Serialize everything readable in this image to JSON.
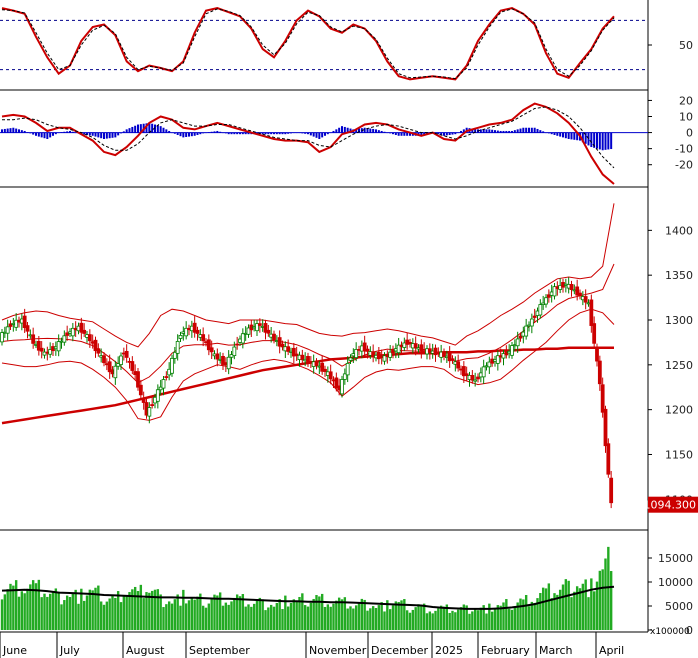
{
  "chart_data": [
    {
      "type": "line",
      "panel": "stochastic",
      "y_ticks": [
        "50"
      ],
      "ylim": [
        0,
        100
      ],
      "reference_lines": [
        80,
        20
      ],
      "colors": {
        "main": "#cc0000",
        "signal": "#000000",
        "reference": "#00008b"
      },
      "x": [
        0,
        4,
        8,
        12,
        16,
        20,
        24,
        28,
        32,
        36,
        40,
        44,
        48,
        52,
        56,
        60,
        64,
        68,
        72,
        76,
        80,
        84,
        88,
        92,
        96,
        100,
        104,
        108,
        112,
        116,
        120,
        124,
        128,
        132,
        136,
        140,
        144,
        148,
        152,
        156,
        160,
        164,
        168,
        172,
        176,
        180,
        184,
        188,
        192,
        196,
        200,
        204,
        208,
        212,
        216
      ],
      "series": [
        {
          "role": "main",
          "values": [
            95,
            92,
            88,
            60,
            35,
            15,
            25,
            55,
            72,
            75,
            62,
            30,
            18,
            25,
            22,
            18,
            30,
            65,
            92,
            95,
            90,
            85,
            70,
            45,
            35,
            55,
            80,
            92,
            85,
            70,
            65,
            75,
            70,
            55,
            30,
            12,
            8,
            10,
            12,
            10,
            8,
            25,
            55,
            75,
            92,
            95,
            88,
            75,
            40,
            15,
            10,
            28,
            45,
            70,
            85
          ]
        },
        {
          "role": "signal",
          "values": [
            93,
            92,
            89,
            65,
            40,
            20,
            25,
            50,
            68,
            74,
            64,
            35,
            20,
            24,
            22,
            19,
            28,
            60,
            88,
            94,
            91,
            86,
            72,
            50,
            38,
            52,
            76,
            90,
            86,
            72,
            66,
            73,
            70,
            57,
            34,
            15,
            10,
            11,
            12,
            11,
            9,
            22,
            50,
            72,
            90,
            94,
            88,
            77,
            45,
            20,
            12,
            25,
            43,
            68,
            83
          ]
        }
      ]
    },
    {
      "type": "bar",
      "panel": "macd",
      "y_ticks": [
        "20",
        "10",
        "0",
        "-10",
        "-20"
      ],
      "ylim": [
        -32,
        24
      ],
      "colors": {
        "macd": "#cc0000",
        "signal": "#000000",
        "histogram": "#0000cc"
      },
      "x": [
        0,
        4,
        8,
        12,
        16,
        20,
        24,
        28,
        32,
        36,
        40,
        44,
        48,
        52,
        56,
        60,
        64,
        68,
        72,
        76,
        80,
        84,
        88,
        92,
        96,
        100,
        104,
        108,
        112,
        116,
        120,
        124,
        128,
        132,
        136,
        140,
        144,
        148,
        152,
        156,
        160,
        164,
        168,
        172,
        176,
        180,
        184,
        188,
        192,
        196,
        200,
        204,
        208,
        212,
        216
      ],
      "series": [
        {
          "name": "",
          "role": "macd",
          "values": [
            10,
            11,
            10,
            6,
            1,
            3,
            3,
            -1,
            -5,
            -12,
            -14,
            -9,
            -2,
            6,
            10,
            8,
            3,
            2,
            4,
            6,
            4,
            2,
            0,
            -2,
            -4,
            -5,
            -5,
            -6,
            -12,
            -9,
            -1,
            1,
            5,
            6,
            5,
            2,
            0,
            -2,
            0,
            -4,
            -5,
            1,
            3,
            5,
            6,
            8,
            14,
            18,
            16,
            12,
            6,
            -2,
            -15,
            -26,
            -32
          ]
        },
        {
          "name": "",
          "role": "signal",
          "values": [
            8,
            8,
            9,
            8,
            5,
            3,
            2,
            0,
            -3,
            -8,
            -11,
            -11,
            -7,
            0,
            6,
            8,
            6,
            4,
            4,
            5,
            5,
            3,
            1,
            -1,
            -3,
            -4,
            -5,
            -5,
            -8,
            -9,
            -5,
            -1,
            2,
            4,
            5,
            4,
            2,
            0,
            0,
            -2,
            -4,
            -2,
            1,
            3,
            5,
            7,
            11,
            15,
            16,
            14,
            10,
            3,
            -6,
            -15,
            -22
          ]
        }
      ]
    },
    {
      "type": "line",
      "panel": "price",
      "y_ticks": [
        "1400",
        "1350",
        "1300",
        "1250",
        "1200",
        "1150",
        "1100"
      ],
      "ylim": [
        1068,
        1445
      ],
      "last_price_label": "1094.300",
      "colors": {
        "price_label_bg": "#cc0000",
        "price_label_text": "#ffffff",
        "ma": "#cc0000",
        "bands": "#cc0000",
        "up": "#008000",
        "down": "#cc0000"
      },
      "x": [
        0,
        4,
        8,
        12,
        16,
        20,
        24,
        28,
        32,
        36,
        40,
        44,
        48,
        52,
        56,
        60,
        64,
        68,
        72,
        76,
        80,
        84,
        88,
        92,
        96,
        100,
        104,
        108,
        112,
        116,
        120,
        124,
        128,
        132,
        136,
        140,
        144,
        148,
        152,
        156,
        160,
        164,
        168,
        172,
        176,
        180,
        184,
        188,
        192,
        196,
        200,
        204,
        208,
        212,
        216
      ],
      "series": [
        {
          "name": "",
          "role": "close",
          "values": [
            1280,
            1295,
            1300,
            1275,
            1262,
            1270,
            1285,
            1292,
            1278,
            1258,
            1240,
            1265,
            1238,
            1195,
            1220,
            1245,
            1285,
            1292,
            1278,
            1260,
            1250,
            1275,
            1290,
            1295,
            1282,
            1270,
            1262,
            1255,
            1250,
            1240,
            1222,
            1260,
            1270,
            1260,
            1258,
            1268,
            1275,
            1268,
            1265,
            1262,
            1255,
            1240,
            1232,
            1250,
            1258,
            1265,
            1282,
            1300,
            1320,
            1335,
            1340,
            1330,
            1318,
            1230,
            1094
          ]
        },
        {
          "name": "",
          "role": "ma200",
          "values": [
            1185,
            1187,
            1189,
            1191,
            1193,
            1195,
            1197,
            1199,
            1201,
            1203,
            1205,
            1208,
            1211,
            1214,
            1217,
            1220,
            1223,
            1226,
            1229,
            1232,
            1235,
            1238,
            1241,
            1244,
            1246,
            1248,
            1250,
            1252,
            1254,
            1256,
            1257,
            1258,
            1259,
            1260,
            1261,
            1262,
            1263,
            1263,
            1263,
            1264,
            1264,
            1264,
            1265,
            1265,
            1266,
            1266,
            1267,
            1267,
            1268,
            1268,
            1269,
            1269,
            1269,
            1269,
            1269
          ]
        },
        {
          "name": "",
          "role": "upper_band",
          "values": [
            1300,
            1305,
            1308,
            1310,
            1309,
            1305,
            1302,
            1300,
            1298,
            1290,
            1282,
            1275,
            1270,
            1285,
            1305,
            1312,
            1310,
            1305,
            1300,
            1298,
            1296,
            1300,
            1300,
            1300,
            1298,
            1296,
            1295,
            1290,
            1285,
            1283,
            1282,
            1285,
            1286,
            1288,
            1290,
            1288,
            1285,
            1282,
            1280,
            1276,
            1272,
            1282,
            1288,
            1296,
            1305,
            1312,
            1320,
            1330,
            1338,
            1346,
            1348,
            1346,
            1348,
            1360,
            1430
          ]
        },
        {
          "name": "",
          "role": "lower_band",
          "values": [
            1252,
            1250,
            1248,
            1248,
            1250,
            1253,
            1254,
            1252,
            1245,
            1236,
            1225,
            1210,
            1190,
            1188,
            1192,
            1214,
            1232,
            1240,
            1245,
            1250,
            1248,
            1245,
            1250,
            1254,
            1256,
            1254,
            1250,
            1245,
            1238,
            1230,
            1215,
            1225,
            1236,
            1242,
            1245,
            1244,
            1246,
            1248,
            1248,
            1245,
            1236,
            1232,
            1228,
            1230,
            1234,
            1244,
            1255,
            1265,
            1275,
            1288,
            1300,
            1308,
            1312,
            1308,
            1295
          ]
        }
      ]
    },
    {
      "type": "bar",
      "panel": "volume",
      "y_ticks": [
        "15000",
        "10000",
        "5000",
        "0"
      ],
      "ylim": [
        0,
        20000
      ],
      "unit_label": "x100000",
      "colors": {
        "bar": "#22aa22",
        "avg": "#000000"
      },
      "x_labels": [
        "June",
        "July",
        "August",
        "September",
        "November",
        "December",
        "2025",
        "February",
        "March",
        "April"
      ],
      "x": [
        0,
        4,
        8,
        12,
        16,
        20,
        24,
        28,
        32,
        36,
        40,
        44,
        48,
        52,
        56,
        60,
        64,
        68,
        72,
        76,
        80,
        84,
        88,
        92,
        96,
        100,
        104,
        108,
        112,
        116,
        120,
        124,
        128,
        132,
        136,
        140,
        144,
        148,
        152,
        156,
        160,
        164,
        168,
        172,
        176,
        180,
        184,
        188,
        192,
        196,
        200,
        204,
        208,
        212,
        216
      ],
      "series": [
        {
          "name": "",
          "role": "volume",
          "values": [
            8500,
            9000,
            9500,
            9000,
            8000,
            7000,
            7500,
            7200,
            8500,
            7000,
            6500,
            9000,
            7500,
            9000,
            6500,
            6000,
            7000,
            6500,
            6200,
            7000,
            6500,
            6500,
            5600,
            5600,
            5300,
            6000,
            6300,
            6500,
            6800,
            6000,
            5900,
            5200,
            5500,
            5000,
            5200,
            6000,
            4800,
            5000,
            4300,
            4500,
            4300,
            4500,
            4500,
            4600,
            5200,
            5600,
            6200,
            7000,
            8000,
            8500,
            9000,
            9500,
            9000,
            13000,
            16000
          ]
        },
        {
          "name": "",
          "role": "volume_ma",
          "values": [
            8200,
            8300,
            8400,
            8300,
            8100,
            7800,
            7700,
            7600,
            7500,
            7300,
            7200,
            7100,
            7000,
            6900,
            6800,
            6800,
            6700,
            6700,
            6600,
            6500,
            6500,
            6400,
            6300,
            6200,
            6100,
            6000,
            6000,
            5900,
            5900,
            5800,
            5800,
            5700,
            5600,
            5500,
            5400,
            5300,
            5200,
            5100,
            4800,
            4600,
            4500,
            4400,
            4400,
            4400,
            4500,
            4700,
            5000,
            5400,
            6000,
            6600,
            7200,
            7800,
            8400,
            8800,
            9000
          ]
        }
      ]
    }
  ]
}
